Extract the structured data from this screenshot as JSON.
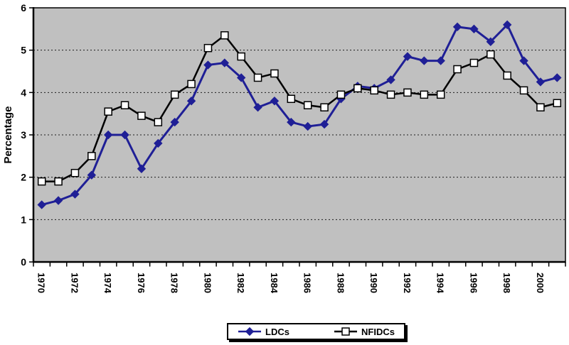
{
  "chart_data": {
    "type": "line",
    "title": "",
    "xlabel": "",
    "ylabel": "Percentage",
    "ylim": [
      0,
      6
    ],
    "yticks": [
      0,
      1,
      2,
      3,
      4,
      5,
      6
    ],
    "grid": "horizontal-dashed",
    "plot_background": "#c0c0c0",
    "gridline_color": "#1c1c1c",
    "legend_position": "bottom-center",
    "x": [
      "1970",
      "1971",
      "1972",
      "1973",
      "1974",
      "1975",
      "1976",
      "1977",
      "1978",
      "1979",
      "1980",
      "1981",
      "1982",
      "1983",
      "1984",
      "1985",
      "1986",
      "1987",
      "1988",
      "1989",
      "1990",
      "1991",
      "1992",
      "1993",
      "1994",
      "1995",
      "1996",
      "1997",
      "1998",
      "1999",
      "2000",
      "2001"
    ],
    "x_axis_visible_labels": [
      "1970",
      "1972",
      "1974",
      "1976",
      "1978",
      "1980",
      "1982",
      "1984",
      "1986",
      "1988",
      "1990",
      "1992",
      "1994",
      "1996",
      "1998",
      "2000"
    ],
    "series": [
      {
        "name": "LDCs",
        "color": "#1f1f96",
        "marker": "diamond",
        "marker_fill": "#1f1f96",
        "values": [
          1.35,
          1.45,
          1.6,
          2.05,
          3.0,
          3.0,
          2.2,
          2.8,
          3.3,
          3.8,
          4.65,
          4.7,
          4.35,
          3.65,
          3.8,
          3.3,
          3.2,
          3.25,
          3.85,
          4.15,
          4.1,
          4.3,
          4.85,
          4.75,
          4.75,
          5.55,
          5.5,
          5.2,
          5.6,
          4.75,
          4.25,
          4.35
        ]
      },
      {
        "name": "NFIDCs",
        "color": "#000000",
        "marker": "square",
        "marker_fill": "#ffffff",
        "values": [
          1.9,
          1.9,
          2.1,
          2.5,
          3.55,
          3.7,
          3.45,
          3.3,
          3.95,
          4.2,
          5.05,
          5.35,
          4.85,
          4.35,
          4.45,
          3.85,
          3.7,
          3.65,
          3.95,
          4.1,
          4.05,
          3.95,
          4.0,
          3.95,
          3.95,
          4.55,
          4.7,
          4.9,
          4.4,
          4.05,
          3.65,
          3.75
        ]
      }
    ]
  }
}
